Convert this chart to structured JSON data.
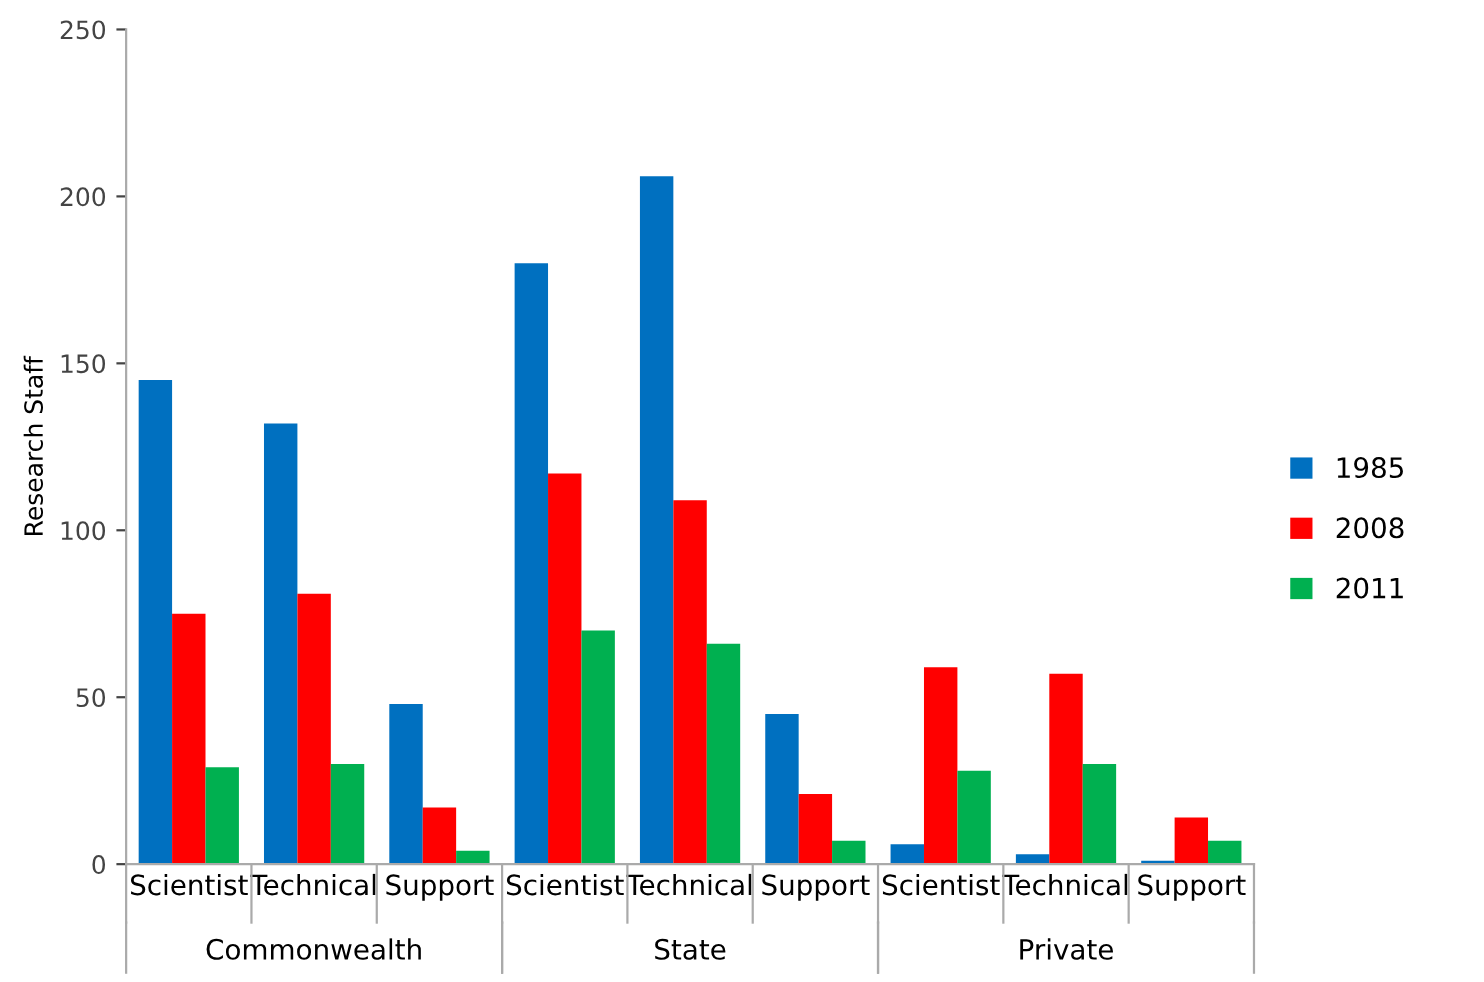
{
  "chart_data": {
    "type": "bar",
    "ylabel": "Research Staff",
    "categories": [
      "Scientist",
      "Technical",
      "Support",
      "Scientist",
      "Technical",
      "Support",
      "Scientist",
      "Technical",
      "Support"
    ],
    "series": [
      {
        "name": "1985",
        "color": "#0070c0",
        "values": [
          145,
          132,
          48,
          180,
          206,
          45,
          6,
          3,
          1
        ]
      },
      {
        "name": "2008",
        "color": "#ff0000",
        "values": [
          75,
          81,
          17,
          117,
          109,
          21,
          59,
          57,
          14
        ]
      },
      {
        "name": "2011",
        "color": "#00b050",
        "values": [
          29,
          30,
          4,
          70,
          66,
          7,
          28,
          30,
          7
        ]
      }
    ],
    "annotations": [
      "Commonwealth",
      "State",
      "Private"
    ],
    "ylim": [
      0,
      250
    ],
    "yticks": [
      0,
      50,
      100,
      150,
      200,
      250
    ],
    "grid": false,
    "legend": "right"
  }
}
